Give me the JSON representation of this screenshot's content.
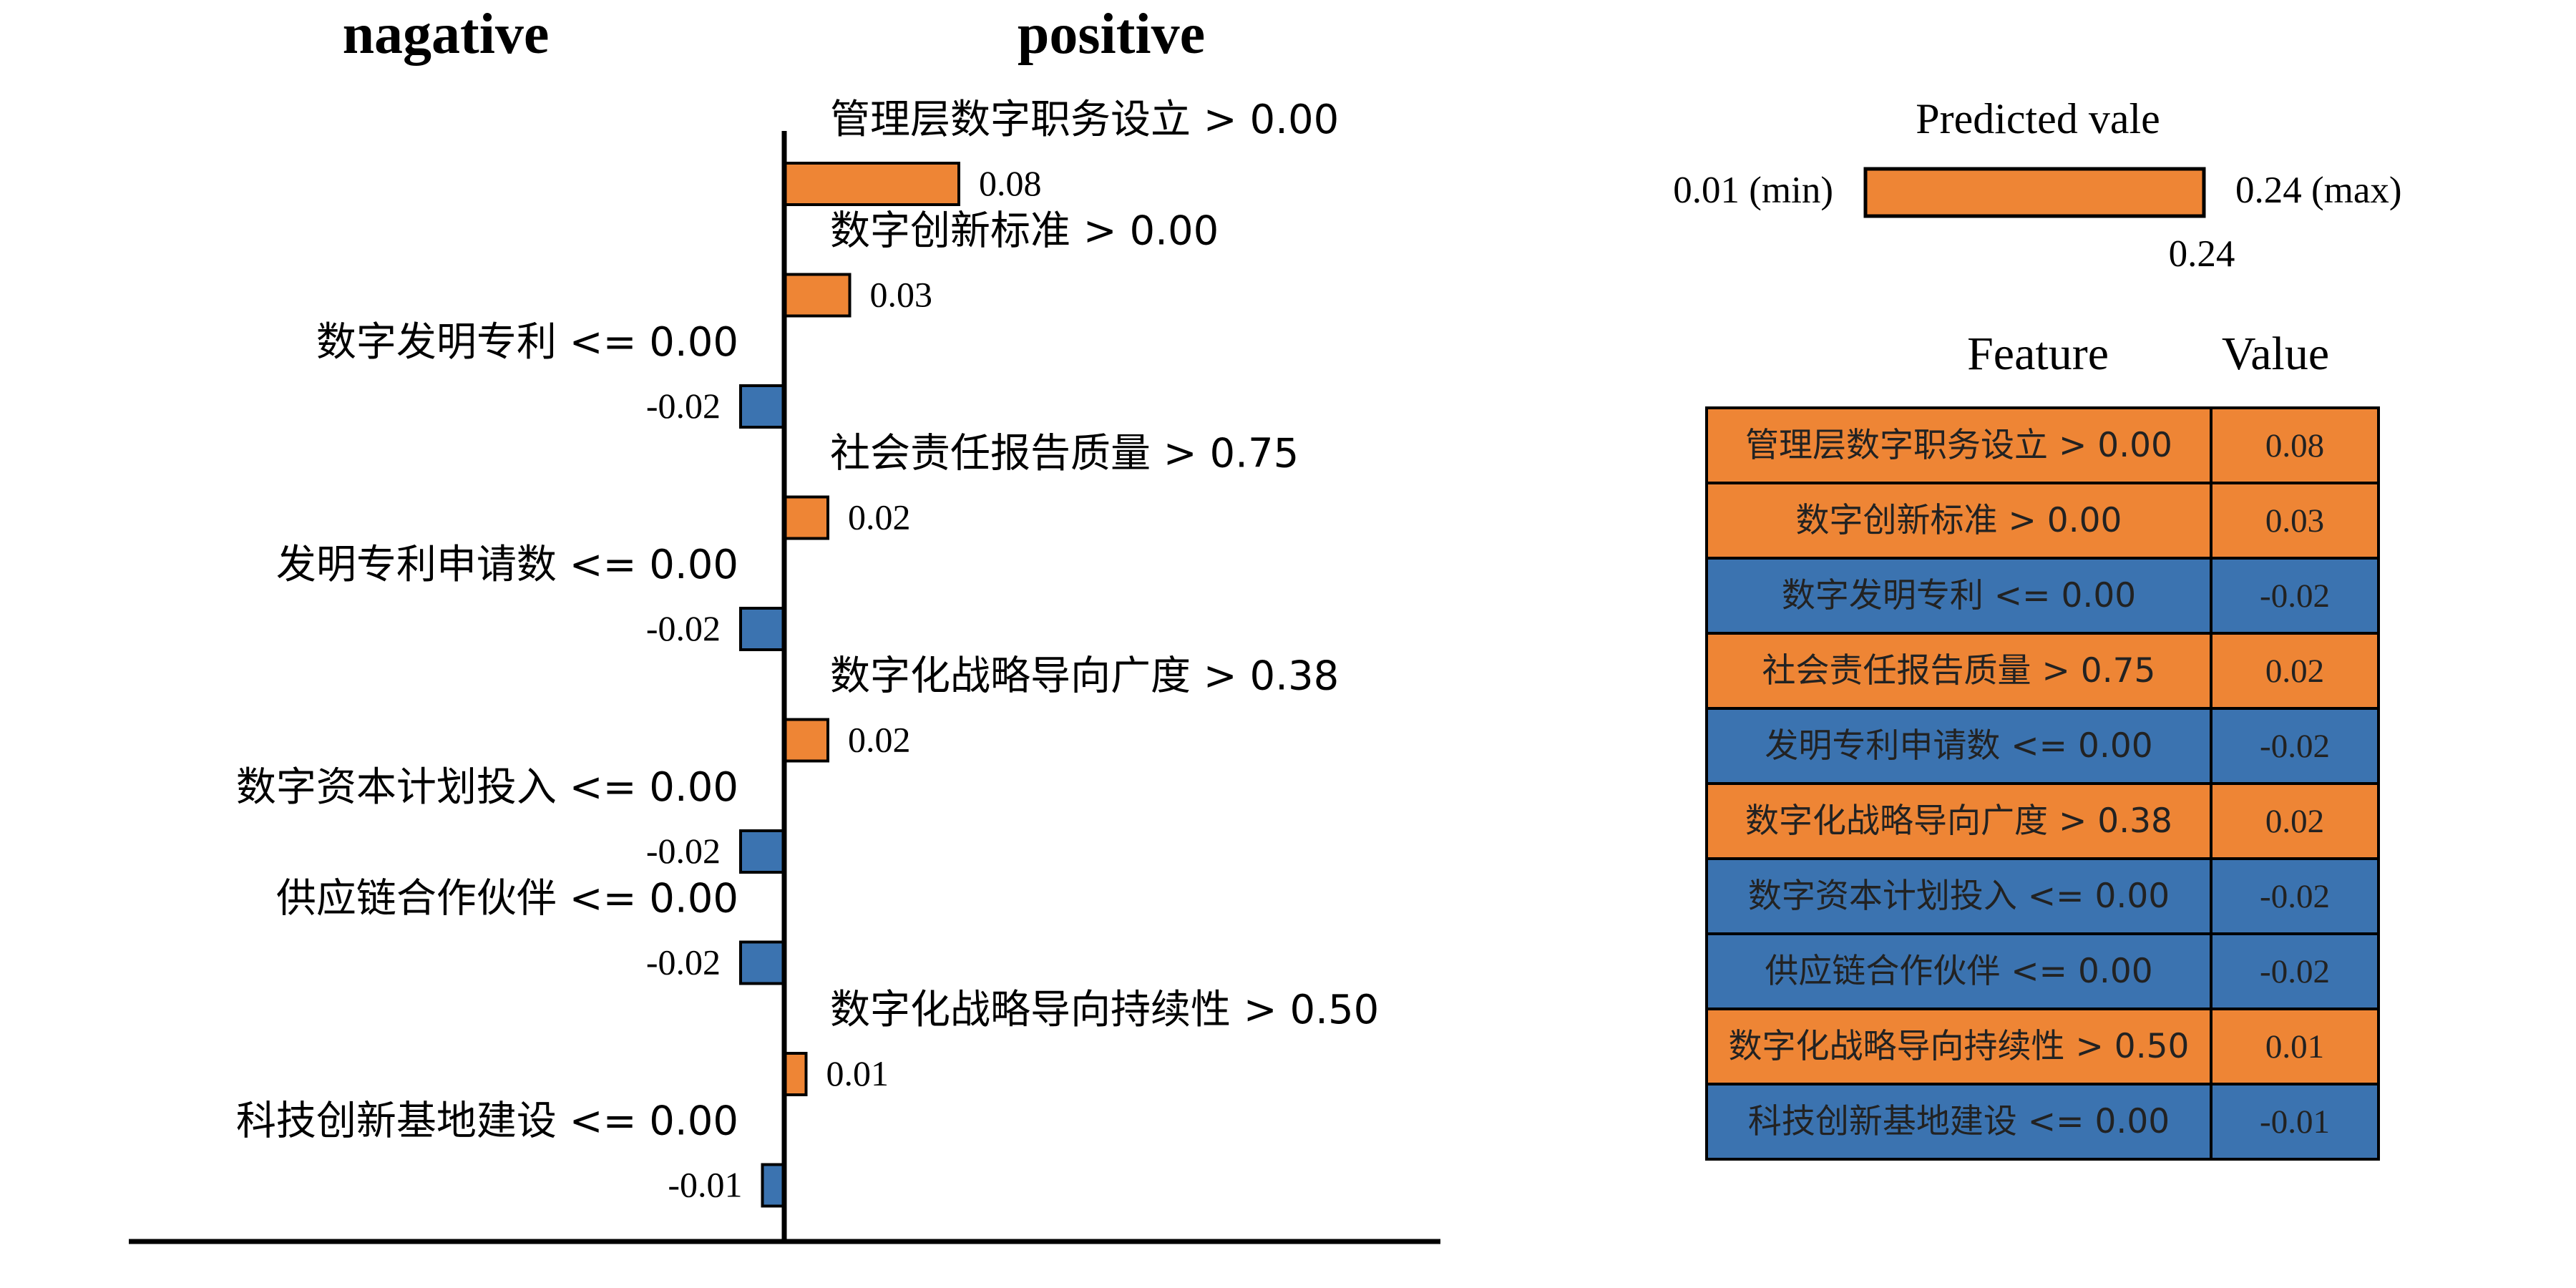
{
  "chart_data": {
    "type": "bar",
    "orientation": "horizontal",
    "headers": {
      "negative": "nagative",
      "positive": "positive"
    },
    "colors": {
      "negative": "#3b73b0",
      "positive": "#ee8535"
    },
    "categories": [
      "管理层数字职务设立 > 0.00",
      "数字创新标准 > 0.00",
      "数字发明专利 <= 0.00",
      "社会责任报告质量 > 0.75",
      "发明专利申请数 <= 0.00",
      "数字化战略导向广度 > 0.38",
      "数字资本计划投入 <= 0.00",
      "供应链合作伙伴 <= 0.00",
      "数字化战略导向持续性 > 0.50",
      "科技创新基地建设 <= 0.00"
    ],
    "values": [
      0.08,
      0.03,
      -0.02,
      0.02,
      -0.02,
      0.02,
      -0.02,
      -0.02,
      0.01,
      -0.01
    ],
    "value_labels": [
      "0.08",
      "0.03",
      "-0.02",
      "0.02",
      "-0.02",
      "0.02",
      "-0.02",
      "-0.02",
      "0.01",
      "-0.01"
    ],
    "prediction": {
      "title": "Predicted vale",
      "min_label": "0.01 (min)",
      "max_label": "0.24 (max)",
      "min": 0.01,
      "max": 0.24,
      "value": 0.24,
      "value_label": "0.24"
    },
    "table": {
      "headers": [
        "Feature",
        "Value"
      ],
      "rows": [
        [
          "管理层数字职务设立 > 0.00",
          "0.08"
        ],
        [
          "数字创新标准 > 0.00",
          "0.03"
        ],
        [
          "数字发明专利 <= 0.00",
          "-0.02"
        ],
        [
          "社会责任报告质量 > 0.75",
          "0.02"
        ],
        [
          "发明专利申请数 <= 0.00",
          "-0.02"
        ],
        [
          "数字化战略导向广度 > 0.38",
          "0.02"
        ],
        [
          "数字资本计划投入 <= 0.00",
          "-0.02"
        ],
        [
          "供应链合作伙伴 <= 0.00",
          "-0.02"
        ],
        [
          "数字化战略导向持续性 > 0.50",
          "0.01"
        ],
        [
          "科技创新基地建设 <= 0.00",
          "-0.01"
        ]
      ]
    }
  }
}
